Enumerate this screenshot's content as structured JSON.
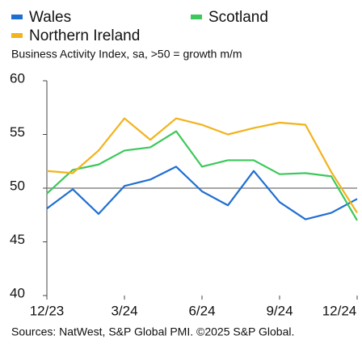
{
  "chart_data": {
    "type": "line",
    "subtitle": "Business Activity Index, sa, >50 = growth m/m",
    "source": "Sources: NatWest, S&P Global PMI. ©2025 S&P Global.",
    "categories": [
      "12/23",
      null,
      null,
      "3/24",
      null,
      null,
      "6/24",
      null,
      null,
      "9/24",
      null,
      null,
      "12/24"
    ],
    "series": [
      {
        "name": "Wales",
        "color": "#1f6fd1",
        "values": [
          48.1,
          49.9,
          47.6,
          50.2,
          50.8,
          52.0,
          49.7,
          48.4,
          51.6,
          48.7,
          47.1,
          47.7,
          49.0
        ]
      },
      {
        "name": "Scotland",
        "color": "#3cc85a",
        "values": [
          49.5,
          51.7,
          52.2,
          53.5,
          53.8,
          55.3,
          52.0,
          52.6,
          52.6,
          51.3,
          51.4,
          51.1,
          47.0
        ]
      },
      {
        "name": "Northern Ireland",
        "color": "#f2b31b",
        "values": [
          51.6,
          51.4,
          53.5,
          56.5,
          54.5,
          56.5,
          55.9,
          55.0,
          55.6,
          56.1,
          55.9,
          51.5,
          47.7
        ]
      }
    ],
    "ylim": [
      40,
      60
    ],
    "yticks": [
      40,
      45,
      50,
      55,
      60
    ],
    "reference_line": 50
  }
}
